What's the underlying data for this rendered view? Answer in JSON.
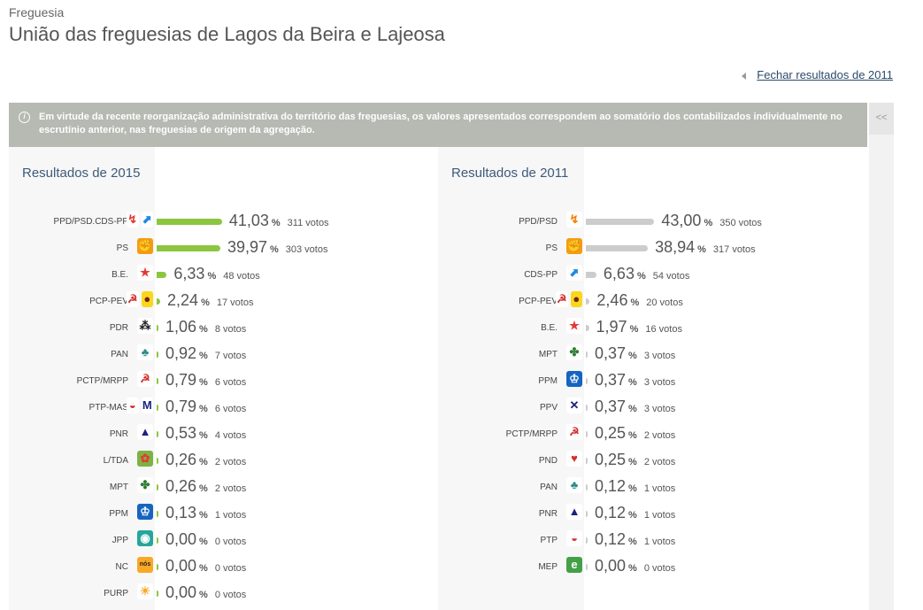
{
  "header": {
    "kicker": "Freguesia",
    "title": "União das freguesias de Lagos da Beira e Lajeosa",
    "close_link": "Fechar resultados de 2011"
  },
  "notice": {
    "icon": "info-icon",
    "text": "Em virtude da recente reorganização administrativa do território das freguesias, os valores apresentados correspondem ao somatório dos contabilizados individualmente no escrutínio anterior, nas freguesias de origem da agregação."
  },
  "collapse_label": "<<",
  "colors": {
    "bar2015": "#8cc63f",
    "bar2011": "#cccccc",
    "notice": "#b6bab2"
  },
  "panels": [
    {
      "title": "Resultados de 2015",
      "bar_color": "#8cc63f",
      "rows": [
        {
          "party": "PPD/PSD.CDS-PP",
          "pct": 41.03,
          "pct_label": "41,03",
          "votes": "311 votos",
          "logos": [
            [
              "#fff",
              "#e3342f",
              "↯"
            ],
            [
              "#fff",
              "#1e88e5",
              "⬈"
            ]
          ]
        },
        {
          "party": "PS",
          "pct": 39.97,
          "pct_label": "39,97",
          "votes": "303 votos",
          "logos": [
            [
              "#f39c12",
              "#d32f2f",
              "✊"
            ]
          ]
        },
        {
          "party": "B.E.",
          "pct": 6.33,
          "pct_label": "6,33",
          "votes": "48 votos",
          "logos": [
            [
              "#fff",
              "#e53935",
              "★"
            ]
          ]
        },
        {
          "party": "PCP-PEV",
          "pct": 2.24,
          "pct_label": "2,24",
          "votes": "17 votos",
          "logos": [
            [
              "#fff",
              "#d32f2f",
              "☭"
            ],
            [
              "#f9d71c",
              "#7a1f1f",
              "●"
            ]
          ]
        },
        {
          "party": "PDR",
          "pct": 1.06,
          "pct_label": "1,06",
          "votes": "8 votos",
          "logos": [
            [
              "#fff",
              "#222",
              "⁂"
            ]
          ]
        },
        {
          "party": "PAN",
          "pct": 0.92,
          "pct_label": "0,92",
          "votes": "7 votos",
          "logos": [
            [
              "#fff",
              "#2e8b8b",
              "♣"
            ]
          ]
        },
        {
          "party": "PCTP/MRPP",
          "pct": 0.79,
          "pct_label": "0,79",
          "votes": "6 votos",
          "logos": [
            [
              "#fff",
              "#d32f2f",
              "☭"
            ]
          ]
        },
        {
          "party": "PTP-MAS",
          "pct": 0.79,
          "pct_label": "0,79",
          "votes": "6 votos",
          "logos": [
            [
              "#fff",
              "#d32f2f",
              "◒"
            ],
            [
              "#fff",
              "#1a237e",
              "M"
            ]
          ]
        },
        {
          "party": "PNR",
          "pct": 0.53,
          "pct_label": "0,53",
          "votes": "4 votos",
          "logos": [
            [
              "#fff",
              "#1a237e",
              "▲"
            ]
          ]
        },
        {
          "party": "L/TDA",
          "pct": 0.26,
          "pct_label": "0,26",
          "votes": "2 votos",
          "logos": [
            [
              "#7cb342",
              "#e53935",
              "✿"
            ]
          ]
        },
        {
          "party": "MPT",
          "pct": 0.26,
          "pct_label": "0,26",
          "votes": "2 votos",
          "logos": [
            [
              "#fff",
              "#2e7d32",
              "✤"
            ]
          ]
        },
        {
          "party": "PPM",
          "pct": 0.13,
          "pct_label": "0,13",
          "votes": "1 votos",
          "logos": [
            [
              "#1565c0",
              "#fff",
              "♔"
            ]
          ]
        },
        {
          "party": "JPP",
          "pct": 0.0,
          "pct_label": "0,00",
          "votes": "0 votos",
          "logos": [
            [
              "#26a69a",
              "#fff",
              "◉"
            ]
          ]
        },
        {
          "party": "NC",
          "pct": 0.0,
          "pct_label": "0,00",
          "votes": "0 votos",
          "logos": [
            [
              "#f9a825",
              "#222",
              "nós"
            ]
          ]
        },
        {
          "party": "PURP",
          "pct": 0.0,
          "pct_label": "0,00",
          "votes": "0 votos",
          "logos": [
            [
              "#fff",
              "#f9a825",
              "☀"
            ]
          ]
        }
      ]
    },
    {
      "title": "Resultados de 2011",
      "bar_color": "#cccccc",
      "rows": [
        {
          "party": "PPD/PSD",
          "pct": 43.0,
          "pct_label": "43,00",
          "votes": "350 votos",
          "logos": [
            [
              "#fff",
              "#f57c00",
              "↯"
            ]
          ]
        },
        {
          "party": "PS",
          "pct": 38.94,
          "pct_label": "38,94",
          "votes": "317 votos",
          "logos": [
            [
              "#f39c12",
              "#d32f2f",
              "✊"
            ]
          ]
        },
        {
          "party": "CDS-PP",
          "pct": 6.63,
          "pct_label": "6,63",
          "votes": "54 votos",
          "logos": [
            [
              "#fff",
              "#1e88e5",
              "⬈"
            ]
          ]
        },
        {
          "party": "PCP-PEV",
          "pct": 2.46,
          "pct_label": "2,46",
          "votes": "20 votos",
          "logos": [
            [
              "#fff",
              "#d32f2f",
              "☭"
            ],
            [
              "#f9d71c",
              "#7a1f1f",
              "●"
            ]
          ]
        },
        {
          "party": "B.E.",
          "pct": 1.97,
          "pct_label": "1,97",
          "votes": "16 votos",
          "logos": [
            [
              "#fff",
              "#e53935",
              "★"
            ]
          ]
        },
        {
          "party": "MPT",
          "pct": 0.37,
          "pct_label": "0,37",
          "votes": "3 votos",
          "logos": [
            [
              "#fff",
              "#2e7d32",
              "✤"
            ]
          ]
        },
        {
          "party": "PPM",
          "pct": 0.37,
          "pct_label": "0,37",
          "votes": "3 votos",
          "logos": [
            [
              "#1565c0",
              "#fff",
              "♔"
            ]
          ]
        },
        {
          "party": "PPV",
          "pct": 0.37,
          "pct_label": "0,37",
          "votes": "3 votos",
          "logos": [
            [
              "#fff",
              "#1a237e",
              "✕"
            ]
          ]
        },
        {
          "party": "PCTP/MRPP",
          "pct": 0.25,
          "pct_label": "0,25",
          "votes": "2 votos",
          "logos": [
            [
              "#fff",
              "#d32f2f",
              "☭"
            ]
          ]
        },
        {
          "party": "PND",
          "pct": 0.25,
          "pct_label": "0,25",
          "votes": "2 votos",
          "logos": [
            [
              "#fff",
              "#d32f2f",
              "♥"
            ]
          ]
        },
        {
          "party": "PAN",
          "pct": 0.12,
          "pct_label": "0,12",
          "votes": "1 votos",
          "logos": [
            [
              "#fff",
              "#2e8b8b",
              "♣"
            ]
          ]
        },
        {
          "party": "PNR",
          "pct": 0.12,
          "pct_label": "0,12",
          "votes": "1 votos",
          "logos": [
            [
              "#fff",
              "#1a237e",
              "▲"
            ]
          ]
        },
        {
          "party": "PTP",
          "pct": 0.12,
          "pct_label": "0,12",
          "votes": "1 votos",
          "logos": [
            [
              "#fff",
              "#d32f2f",
              "◒"
            ]
          ]
        },
        {
          "party": "MEP",
          "pct": 0.0,
          "pct_label": "0,00",
          "votes": "0 votos",
          "logos": [
            [
              "#43a047",
              "#fff",
              "e"
            ]
          ]
        }
      ]
    }
  ]
}
